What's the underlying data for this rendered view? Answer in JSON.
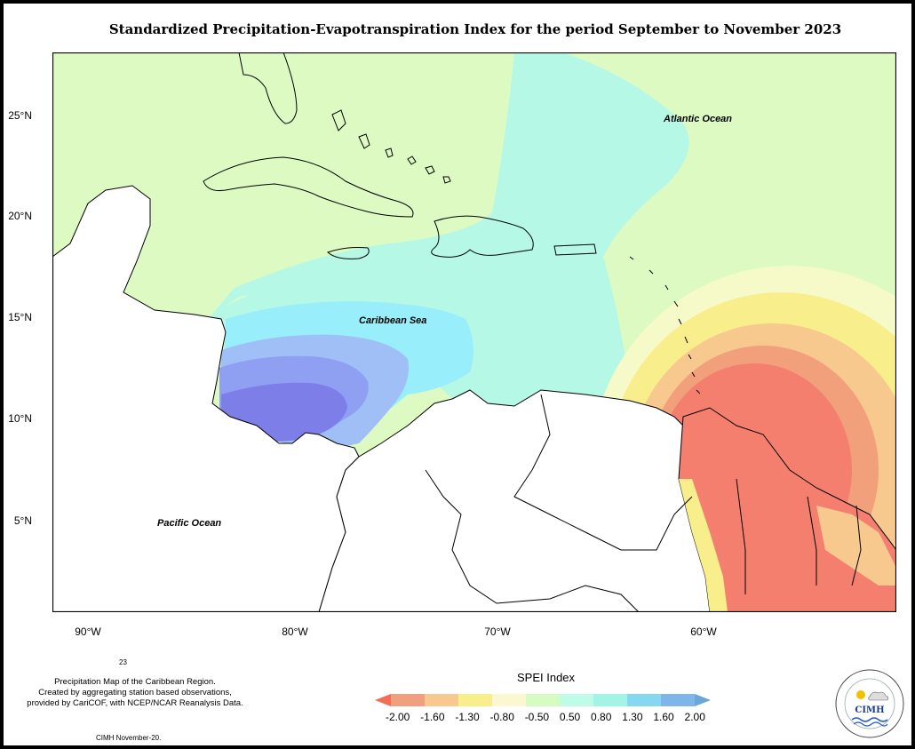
{
  "title": "Standardized Precipitation-Evapotranspiration Index for the period September to November 2023",
  "labels": {
    "atlantic": "Atlantic Ocean",
    "caribbean": "Caribbean Sea",
    "pacific": "Pacific Ocean"
  },
  "lat_ticks": [
    "25°N",
    "20°N",
    "15°N",
    "10°N",
    "5°N"
  ],
  "lon_ticks": [
    "90°W",
    "80°W",
    "70°W",
    "60°W"
  ],
  "note": {
    "small_label": "23",
    "line1": "Precipitation Map of the Caribbean Region.",
    "line2": "Created by aggregating station based observations,",
    "line3": "provided by CariCOF, with NCEP/NCAR Reanalysis Data.",
    "credit": "CIMH November-20."
  },
  "legend": {
    "title": "SPEI Index",
    "ticks": [
      "-2.00",
      "-1.60",
      "-1.30",
      "-0.80",
      "-0.50",
      "0.50",
      "0.80",
      "1.30",
      "1.60",
      "2.00"
    ],
    "colors": [
      "#f46d55",
      "#f0a07e",
      "#f7c98f",
      "#f8ef8c",
      "#fbf7d0",
      "#d6fcc4",
      "#bffce8",
      "#a3f4e6",
      "#86d8f0",
      "#7fb6ea",
      "#6aa6d6"
    ]
  },
  "logo": {
    "text": "CIMH"
  }
}
